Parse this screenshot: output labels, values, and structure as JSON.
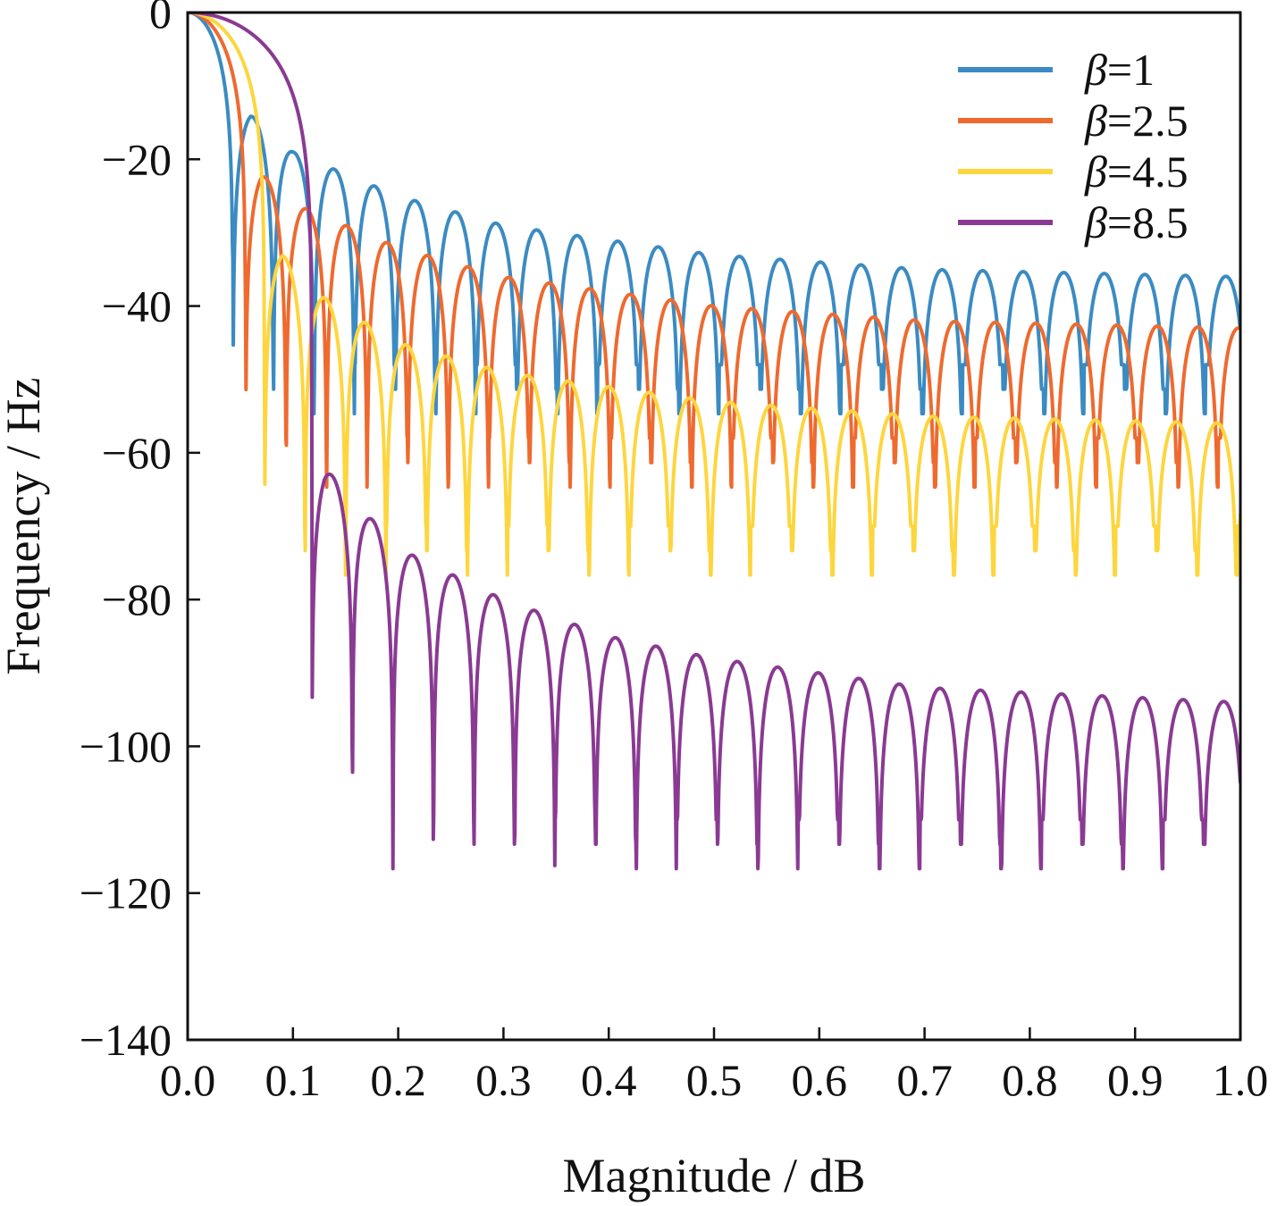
{
  "chart_data": {
    "type": "line",
    "xlabel": "Magnitude / dB",
    "ylabel": "Frequency / Hz",
    "xlim": [
      0,
      1.0
    ],
    "ylim": [
      -140,
      0
    ],
    "x_ticks": [
      "0.0",
      "0.1",
      "0.2",
      "0.3",
      "0.4",
      "0.5",
      "0.6",
      "0.7",
      "0.8",
      "0.9",
      "1.0"
    ],
    "y_ticks": [
      "0",
      "−20",
      "−40",
      "−60",
      "−80",
      "−100",
      "−120",
      "−140"
    ],
    "grid": false,
    "legend_position": "top-right",
    "series": [
      {
        "name": "β=1",
        "legend_symbol": "β",
        "legend_value": "=1",
        "color": "#3b8bc2",
        "mainlobe_null": 0.043,
        "null_spacing": 0.0385,
        "first_sidelobe_db": -14,
        "sidelobe_envelope": [
          [
            0.06,
            -14
          ],
          [
            0.1,
            -19
          ],
          [
            0.2,
            -25
          ],
          [
            0.3,
            -29
          ],
          [
            0.5,
            -33
          ],
          [
            0.7,
            -35
          ],
          [
            1.0,
            -36
          ]
        ],
        "null_depth_db": -48
      },
      {
        "name": "β=2.5",
        "legend_symbol": "β",
        "legend_value": "=2.5",
        "color": "#ee6a2f",
        "mainlobe_null": 0.055,
        "null_spacing": 0.0385,
        "first_sidelobe_db": -22,
        "sidelobe_envelope": [
          [
            0.07,
            -22
          ],
          [
            0.1,
            -26
          ],
          [
            0.2,
            -32
          ],
          [
            0.3,
            -36
          ],
          [
            0.5,
            -40
          ],
          [
            0.7,
            -42
          ],
          [
            1.0,
            -43
          ]
        ],
        "null_depth_db": -58
      },
      {
        "name": "β=4.5",
        "legend_symbol": "β",
        "legend_value": "=4.5",
        "color": "#fdd63f",
        "mainlobe_null": 0.073,
        "null_spacing": 0.0385,
        "first_sidelobe_db": -33,
        "sidelobe_envelope": [
          [
            0.09,
            -33
          ],
          [
            0.12,
            -38
          ],
          [
            0.2,
            -45
          ],
          [
            0.3,
            -49
          ],
          [
            0.5,
            -53
          ],
          [
            0.7,
            -55
          ],
          [
            1.0,
            -56
          ]
        ],
        "null_depth_db": -70
      },
      {
        "name": "β=8.5",
        "legend_symbol": "β",
        "legend_value": "=8.5",
        "color": "#8a3a93",
        "mainlobe_null": 0.118,
        "null_spacing": 0.0385,
        "first_sidelobe_db": -62,
        "sidelobe_envelope": [
          [
            0.13,
            -62
          ],
          [
            0.2,
            -73
          ],
          [
            0.3,
            -80
          ],
          [
            0.4,
            -85
          ],
          [
            0.5,
            -88
          ],
          [
            0.7,
            -92
          ],
          [
            1.0,
            -94
          ]
        ],
        "null_depth_db": -110
      }
    ]
  }
}
